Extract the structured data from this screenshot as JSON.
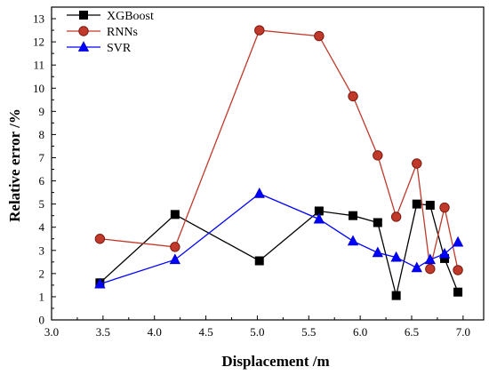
{
  "chart_data": {
    "type": "line",
    "xlabel": "Displacement /m",
    "ylabel": "Relative error /%",
    "xlim": [
      3.0,
      7.2
    ],
    "ylim": [
      0,
      13.5
    ],
    "x_ticks": [
      3.0,
      3.5,
      4.0,
      4.5,
      5.0,
      5.5,
      6.0,
      6.5,
      7.0
    ],
    "y_ticks": [
      0,
      1,
      2,
      3,
      4,
      5,
      6,
      7,
      8,
      9,
      10,
      11,
      12,
      13
    ],
    "grid": false,
    "legend_position": "top-left",
    "series": [
      {
        "name": "XGBoost",
        "color": "#000000",
        "marker": "square",
        "points": [
          [
            3.47,
            1.6
          ],
          [
            4.2,
            4.55
          ],
          [
            5.02,
            2.55
          ],
          [
            5.6,
            4.7
          ],
          [
            5.93,
            4.5
          ],
          [
            6.17,
            4.2
          ],
          [
            6.35,
            1.05
          ],
          [
            6.55,
            5.0
          ],
          [
            6.68,
            4.95
          ],
          [
            6.82,
            2.65
          ],
          [
            6.95,
            1.2
          ]
        ]
      },
      {
        "name": "RNNs",
        "color": "#c0392b",
        "marker": "circle",
        "points": [
          [
            3.47,
            3.5
          ],
          [
            4.2,
            3.15
          ],
          [
            5.02,
            12.5
          ],
          [
            5.6,
            12.25
          ],
          [
            5.93,
            9.65
          ],
          [
            6.17,
            7.1
          ],
          [
            6.35,
            4.45
          ],
          [
            6.55,
            6.75
          ],
          [
            6.68,
            2.2
          ],
          [
            6.82,
            4.85
          ],
          [
            6.95,
            2.15
          ]
        ]
      },
      {
        "name": "SVR",
        "color": "#0000ff",
        "marker": "triangle",
        "points": [
          [
            3.47,
            1.55
          ],
          [
            4.2,
            2.6
          ],
          [
            5.02,
            5.45
          ],
          [
            5.6,
            4.35
          ],
          [
            5.93,
            3.4
          ],
          [
            6.17,
            2.9
          ],
          [
            6.35,
            2.7
          ],
          [
            6.55,
            2.25
          ],
          [
            6.68,
            2.6
          ],
          [
            6.82,
            2.85
          ],
          [
            6.95,
            3.35
          ]
        ]
      }
    ]
  }
}
